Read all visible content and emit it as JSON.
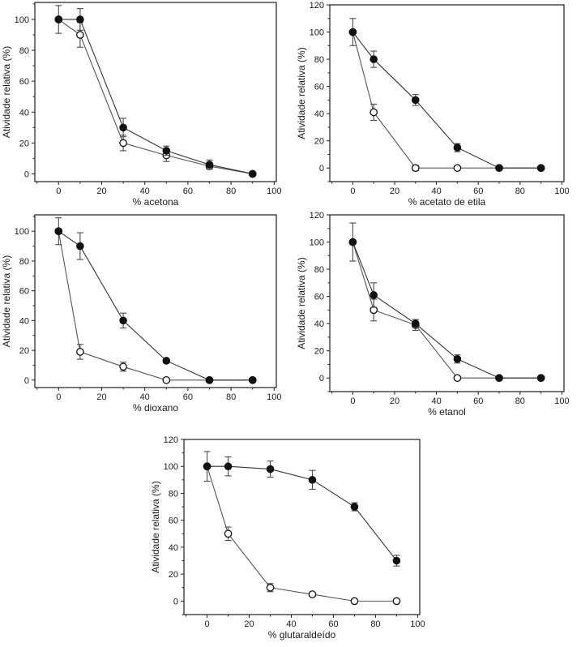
{
  "figure": {
    "background": "#ffffff",
    "frame_color": "#1f1f1f",
    "text_color": "#1a1a1a",
    "marker_fill_color": "#111111",
    "marker_open_fill": "#ffffff",
    "filled_line_color": "#333333",
    "open_line_color": "#555555",
    "error_bar_color": "#4a4a4a"
  },
  "chart_data": [
    {
      "id": "acetona",
      "type": "line",
      "title": "",
      "xlabel": "% acetona",
      "ylabel": "Atividade relativa (%)",
      "xlim": [
        -11,
        101
      ],
      "ylim": [
        -5,
        111
      ],
      "x_ticks": [
        0,
        20,
        40,
        60,
        80,
        100
      ],
      "y_ticks": [
        0,
        20,
        40,
        60,
        80,
        100
      ],
      "minor_tick_step": 10,
      "grid": false,
      "legend": "none",
      "series": [
        {
          "name": "open circles",
          "marker": "open",
          "x": [
            0,
            10,
            30,
            50,
            70,
            90
          ],
          "y": [
            100,
            90,
            20,
            12,
            5,
            0
          ],
          "yerr": [
            0,
            8,
            5,
            4,
            2,
            0
          ]
        },
        {
          "name": "filled circles",
          "marker": "filled",
          "x": [
            0,
            10,
            30,
            50,
            70,
            90
          ],
          "y": [
            100,
            100,
            30,
            15,
            6,
            0
          ],
          "yerr": [
            9,
            7,
            6,
            3,
            3,
            0
          ]
        }
      ]
    },
    {
      "id": "acetato-de-etila",
      "type": "line",
      "title": "",
      "xlabel": "% acetato de etila",
      "ylabel": "Atividade relativa (%)",
      "xlim": [
        -11,
        101
      ],
      "ylim": [
        -10,
        120
      ],
      "x_ticks": [
        0,
        20,
        40,
        60,
        80,
        100
      ],
      "y_ticks": [
        0,
        20,
        40,
        60,
        80,
        100,
        120
      ],
      "minor_tick_step": 10,
      "grid": false,
      "legend": "none",
      "series": [
        {
          "name": "open circles",
          "marker": "open",
          "x": [
            0,
            10,
            30,
            50,
            70,
            90
          ],
          "y": [
            100,
            41,
            0,
            0,
            0,
            0
          ],
          "yerr": [
            0,
            6,
            2,
            0,
            0,
            0
          ]
        },
        {
          "name": "filled circles",
          "marker": "filled",
          "x": [
            0,
            10,
            30,
            50,
            70,
            90
          ],
          "y": [
            100,
            80,
            50,
            15,
            0,
            0
          ],
          "yerr": [
            10,
            6,
            4,
            3,
            0,
            0
          ]
        }
      ]
    },
    {
      "id": "dioxano",
      "type": "line",
      "title": "",
      "xlabel": "% dioxano",
      "ylabel": "Atividade relativa (%)",
      "xlim": [
        -11,
        101
      ],
      "ylim": [
        -5,
        111
      ],
      "x_ticks": [
        0,
        20,
        40,
        60,
        80,
        100
      ],
      "y_ticks": [
        0,
        20,
        40,
        60,
        80,
        100
      ],
      "minor_tick_step": 10,
      "grid": false,
      "legend": "none",
      "series": [
        {
          "name": "open circles",
          "marker": "open",
          "x": [
            0,
            10,
            30,
            50,
            70,
            90
          ],
          "y": [
            100,
            19,
            9,
            0,
            0,
            0
          ],
          "yerr": [
            0,
            5,
            3,
            0,
            0,
            0
          ]
        },
        {
          "name": "filled circles",
          "marker": "filled",
          "x": [
            0,
            10,
            30,
            50,
            70,
            90
          ],
          "y": [
            100,
            90,
            40,
            13,
            0,
            0
          ],
          "yerr": [
            9,
            9,
            5,
            0,
            0,
            0
          ]
        }
      ]
    },
    {
      "id": "etanol",
      "type": "line",
      "title": "",
      "xlabel": "% etanol",
      "ylabel": "Atividade relativa (%)",
      "xlim": [
        -11,
        101
      ],
      "ylim": [
        -10,
        120
      ],
      "x_ticks": [
        0,
        20,
        40,
        60,
        80,
        100
      ],
      "y_ticks": [
        0,
        20,
        40,
        60,
        80,
        100,
        120
      ],
      "minor_tick_step": 10,
      "grid": false,
      "legend": "none",
      "series": [
        {
          "name": "open circles",
          "marker": "open",
          "x": [
            0,
            10,
            30,
            50,
            70,
            90
          ],
          "y": [
            100,
            50,
            39,
            0,
            0,
            0
          ],
          "yerr": [
            0,
            8,
            4,
            0,
            0,
            0
          ]
        },
        {
          "name": "filled circles",
          "marker": "filled",
          "x": [
            0,
            10,
            30,
            50,
            70,
            90
          ],
          "y": [
            100,
            61,
            40,
            14,
            0,
            0
          ],
          "yerr": [
            14,
            9,
            3,
            3,
            0,
            0
          ]
        }
      ]
    },
    {
      "id": "glutaraldeido",
      "type": "line",
      "title": "",
      "xlabel": "% glutaraldeído",
      "ylabel": "Atividade relativa (%)",
      "xlim": [
        -11,
        101
      ],
      "ylim": [
        -10,
        120
      ],
      "x_ticks": [
        0,
        20,
        40,
        60,
        80,
        100
      ],
      "y_ticks": [
        0,
        20,
        40,
        60,
        80,
        100,
        120
      ],
      "minor_tick_step": 10,
      "grid": false,
      "legend": "none",
      "series": [
        {
          "name": "open circles",
          "marker": "open",
          "x": [
            0,
            10,
            30,
            50,
            70,
            90
          ],
          "y": [
            100,
            50,
            10,
            5,
            0,
            0
          ],
          "yerr": [
            0,
            5,
            3,
            0,
            0,
            0
          ]
        },
        {
          "name": "filled circles",
          "marker": "filled",
          "x": [
            0,
            10,
            30,
            50,
            70,
            90
          ],
          "y": [
            100,
            100,
            98,
            90,
            70,
            30
          ],
          "yerr": [
            11,
            7,
            6,
            7,
            3,
            4
          ]
        }
      ]
    }
  ]
}
